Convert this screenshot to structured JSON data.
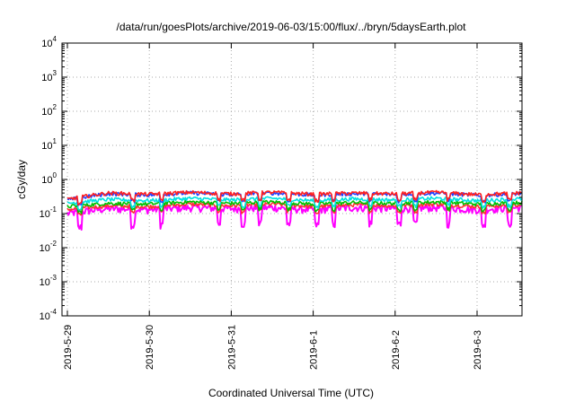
{
  "chart_data": {
    "type": "line",
    "title": "/data/run/goesPlots/archive/2019-06-03/15:00/flux/../bryn/5daysEarth.plot",
    "xlabel": "Coordinated Universal Time (UTC)",
    "ylabel": "cGy/day",
    "yscale": "log",
    "ylim": [
      0.0001,
      10000
    ],
    "y_ticks": [
      {
        "base": "10",
        "exp": "-4",
        "value": 0.0001
      },
      {
        "base": "10",
        "exp": "-3",
        "value": 0.001
      },
      {
        "base": "10",
        "exp": "-2",
        "value": 0.01
      },
      {
        "base": "10",
        "exp": "-1",
        "value": 0.1
      },
      {
        "base": "10",
        "exp": "0",
        "value": 1
      },
      {
        "base": "10",
        "exp": "1",
        "value": 10
      },
      {
        "base": "10",
        "exp": "2",
        "value": 100
      },
      {
        "base": "10",
        "exp": "3",
        "value": 1000
      },
      {
        "base": "10",
        "exp": "4",
        "value": 10000
      }
    ],
    "x_range": [
      "2019-05-29T00:00",
      "2019-06-03T15:00"
    ],
    "x_ticks": [
      "2019-5-29",
      "2019-5-30",
      "2019-5-31",
      "2019-6-1",
      "2019-6-2",
      "2019-6-3"
    ],
    "grid": true,
    "legend": "none",
    "series": [
      {
        "color": "#ff00ff",
        "x_days": [
          0,
          0.5,
          1,
          1.5,
          2,
          2.5,
          3,
          3.5,
          4,
          4.5,
          5,
          5.5,
          5.6
        ],
        "values": [
          0.1,
          0.14,
          0.13,
          0.15,
          0.14,
          0.15,
          0.13,
          0.15,
          0.14,
          0.15,
          0.13,
          0.15,
          0.15
        ]
      },
      {
        "color": "#ff3030",
        "x_days": [
          0,
          0.5,
          1,
          1.5,
          2,
          2.5,
          3,
          3.5,
          4,
          4.5,
          5,
          5.5,
          5.6
        ],
        "values": [
          0.13,
          0.17,
          0.16,
          0.19,
          0.17,
          0.19,
          0.16,
          0.18,
          0.17,
          0.19,
          0.16,
          0.18,
          0.18
        ]
      },
      {
        "color": "#00c000",
        "x_days": [
          0,
          0.5,
          1,
          1.5,
          2,
          2.5,
          3,
          3.5,
          4,
          4.5,
          5,
          5.5,
          5.6
        ],
        "values": [
          0.16,
          0.2,
          0.19,
          0.22,
          0.2,
          0.22,
          0.19,
          0.21,
          0.2,
          0.22,
          0.19,
          0.21,
          0.21
        ]
      },
      {
        "color": "#00e0e0",
        "x_days": [
          0,
          0.5,
          1,
          1.5,
          2,
          2.5,
          3,
          3.5,
          4,
          4.5,
          5,
          5.5,
          5.6
        ],
        "values": [
          0.2,
          0.26,
          0.24,
          0.28,
          0.25,
          0.28,
          0.24,
          0.27,
          0.25,
          0.28,
          0.24,
          0.27,
          0.27
        ]
      },
      {
        "color": "#2040ff",
        "x_days": [
          0,
          0.5,
          1,
          1.5,
          2,
          2.5,
          3,
          3.5,
          4,
          4.5,
          5,
          5.5,
          5.6
        ],
        "values": [
          0.25,
          0.38,
          0.35,
          0.4,
          0.36,
          0.4,
          0.35,
          0.38,
          0.36,
          0.4,
          0.34,
          0.38,
          0.42
        ]
      },
      {
        "color": "#ff2020",
        "x_days": [
          0,
          0.5,
          1,
          1.5,
          2,
          2.5,
          3,
          3.5,
          4,
          4.5,
          5,
          5.5,
          5.6
        ],
        "values": [
          0.26,
          0.4,
          0.37,
          0.42,
          0.38,
          0.42,
          0.37,
          0.4,
          0.38,
          0.42,
          0.36,
          0.4,
          0.44
        ]
      }
    ]
  }
}
